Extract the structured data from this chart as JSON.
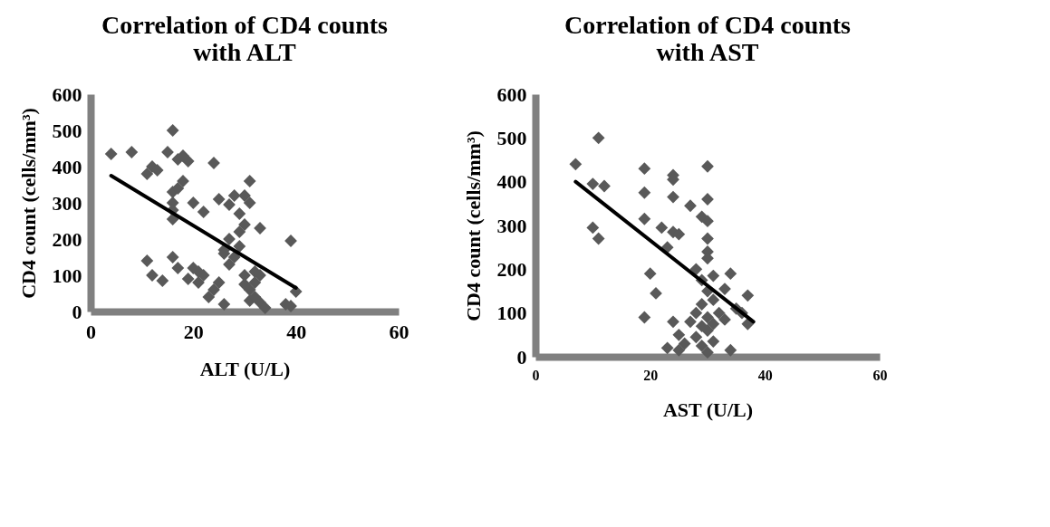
{
  "chart_data": [
    {
      "type": "scatter",
      "title": "Correlation of CD4 counts with ALT",
      "xlabel": "ALT (U/L)",
      "ylabel": "CD4 count (cells/mm³)",
      "xlim": [
        0,
        60
      ],
      "ylim": [
        0,
        600
      ],
      "xticks": [
        0,
        20,
        40,
        60
      ],
      "yticks": [
        0,
        100,
        200,
        300,
        400,
        500,
        600
      ],
      "grid": false,
      "series": [
        {
          "type": "scatter",
          "marker": "diamond",
          "color": "#595959",
          "x": [
            4,
            8,
            11,
            12,
            13,
            15,
            16,
            17,
            19,
            18,
            16,
            16,
            17,
            18,
            16,
            20,
            16,
            24,
            26,
            31,
            30,
            31,
            33,
            39,
            27,
            28,
            22,
            25,
            29,
            11,
            12,
            14,
            16,
            17,
            20,
            22,
            21,
            23,
            25,
            26,
            30,
            31,
            31,
            32,
            33,
            34,
            38,
            40,
            39,
            29,
            28,
            27,
            30,
            29,
            32,
            33,
            30,
            32,
            27,
            26,
            21,
            19,
            24
          ],
          "values": [
            435,
            440,
            380,
            400,
            390,
            440,
            500,
            420,
            415,
            430,
            330,
            300,
            340,
            360,
            280,
            300,
            255,
            410,
            170,
            360,
            320,
            300,
            230,
            195,
            295,
            320,
            275,
            310,
            270,
            140,
            100,
            85,
            150,
            120,
            120,
            100,
            80,
            40,
            80,
            20,
            75,
            60,
            30,
            40,
            25,
            10,
            20,
            55,
            15,
            180,
            150,
            200,
            240,
            220,
            110,
            100,
            100,
            80,
            130,
            160,
            110,
            90,
            60
          ]
        },
        {
          "type": "line",
          "marker": "none",
          "color": "#000000",
          "x": [
            4,
            40
          ],
          "values": [
            375,
            65
          ]
        }
      ]
    },
    {
      "type": "scatter",
      "title": "Correlation of CD4 counts with AST",
      "xlabel": "AST (U/L)",
      "ylabel": "CD4 count (cells/mm³)",
      "xlim": [
        0,
        60
      ],
      "ylim": [
        0,
        600
      ],
      "xticks": [
        0,
        20,
        40,
        60
      ],
      "yticks": [
        0,
        100,
        200,
        300,
        400,
        500,
        600
      ],
      "grid": false,
      "series": [
        {
          "type": "scatter",
          "marker": "diamond",
          "color": "#595959",
          "x": [
            7,
            11,
            10,
            12,
            10,
            11,
            19,
            24,
            24,
            30,
            19,
            24,
            19,
            22,
            27,
            30,
            29,
            30,
            30,
            30,
            30,
            24,
            25,
            23,
            28,
            29,
            31,
            31,
            30,
            34,
            33,
            36,
            37,
            37,
            35,
            20,
            21,
            19,
            24,
            28,
            29,
            30,
            28,
            29,
            31,
            30,
            34,
            26,
            25,
            27,
            31,
            33,
            32,
            30,
            29,
            25,
            23
          ],
          "values": [
            440,
            500,
            395,
            390,
            295,
            270,
            430,
            415,
            405,
            435,
            375,
            365,
            315,
            295,
            345,
            360,
            320,
            310,
            270,
            240,
            225,
            285,
            280,
            250,
            200,
            175,
            185,
            130,
            150,
            190,
            155,
            100,
            140,
            75,
            110,
            190,
            145,
            90,
            80,
            100,
            70,
            60,
            45,
            25,
            35,
            10,
            15,
            30,
            50,
            80,
            75,
            85,
            100,
            90,
            120,
            15,
            20
          ]
        },
        {
          "type": "line",
          "marker": "none",
          "color": "#000000",
          "x": [
            7,
            38
          ],
          "values": [
            400,
            80
          ]
        }
      ]
    }
  ]
}
